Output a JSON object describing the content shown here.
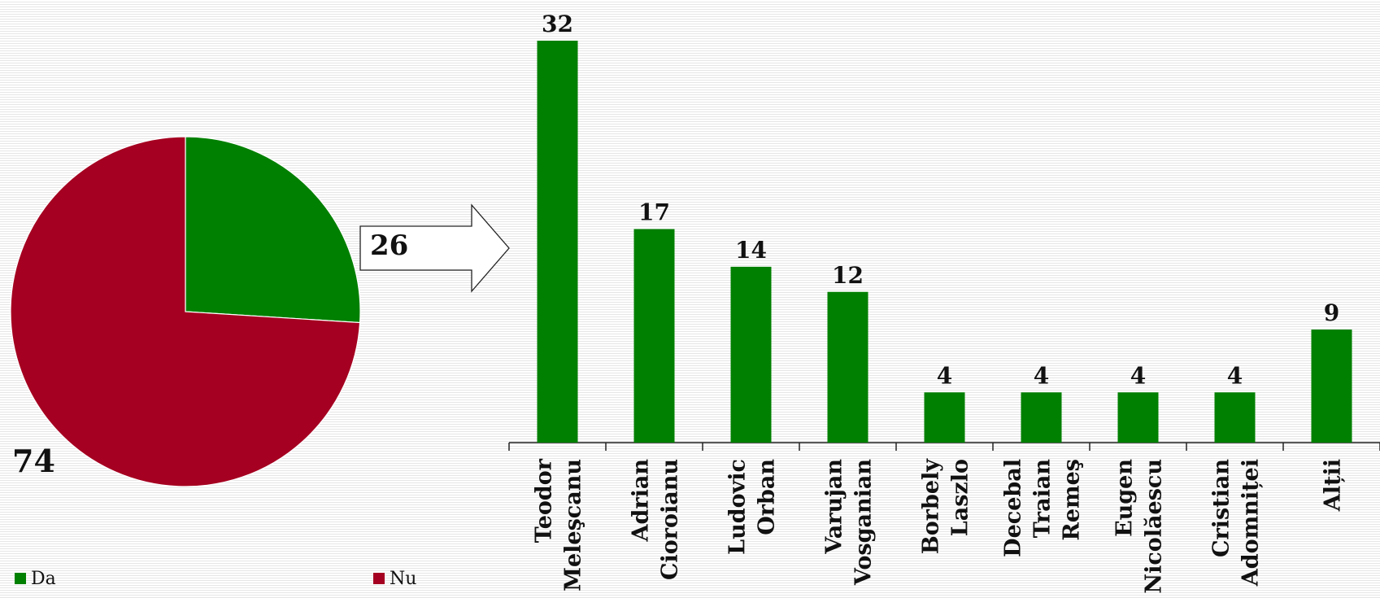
{
  "colors": {
    "green": "#008000",
    "red": "#a50021"
  },
  "chart_data": [
    {
      "type": "pie",
      "categories": [
        "Da",
        "Nu"
      ],
      "values": [
        26,
        74
      ],
      "data_labels": [
        "26",
        "74"
      ],
      "legend": [
        "Da",
        "Nu"
      ],
      "legend_position": "bottom",
      "colors": [
        "#008000",
        "#a50021"
      ]
    },
    {
      "type": "bar",
      "categories": [
        [
          "Teodor",
          "Meleşcanu"
        ],
        [
          "Adrian",
          "Cioroianu"
        ],
        [
          "Ludovic",
          "Orban"
        ],
        [
          "Varujan",
          "Vosganian"
        ],
        [
          "Borbely",
          "Laszlo"
        ],
        [
          "Decebal",
          "Traian",
          "Remeş"
        ],
        [
          "Eugen",
          "Nicolăescu"
        ],
        [
          "Cristian",
          "Adomniței"
        ],
        [
          "Alții"
        ]
      ],
      "values": [
        32,
        17,
        14,
        12,
        4,
        4,
        4,
        4,
        9
      ],
      "data_labels": [
        "32",
        "17",
        "14",
        "12",
        "4",
        "4",
        "4",
        "4",
        "9"
      ],
      "color": "#008000",
      "ylim": [
        0,
        32
      ],
      "grid": false
    }
  ]
}
